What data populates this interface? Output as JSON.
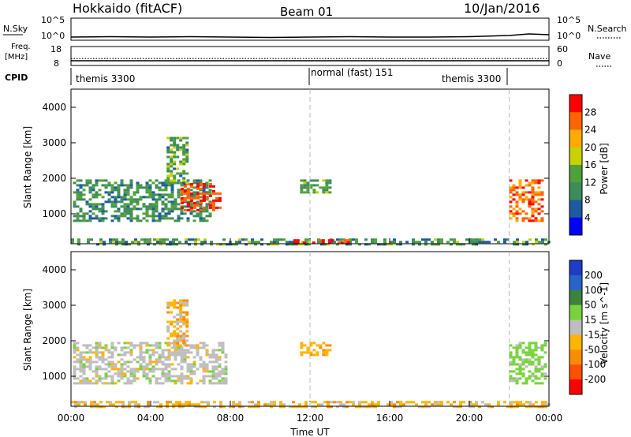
{
  "header": {
    "station": "Hokkaido (fitACF)",
    "beam": "Beam 01",
    "date": "10/Jan/2016"
  },
  "noise_panel": {
    "left_label": "N.Sky",
    "right_label": "N.Search",
    "left_ticks": [
      "10^5",
      "10^0"
    ],
    "right_ticks": [
      "10^5",
      "10^0"
    ]
  },
  "freq_panel": {
    "left_label_top": "Freq.",
    "left_label_bottom": "[MHz]",
    "left_ticks": [
      "18",
      "8"
    ],
    "right_ticks": [
      "60",
      "0"
    ],
    "right_label": "Nave"
  },
  "cpid": {
    "label": "CPID",
    "segments": [
      {
        "text": "themis 3300",
        "start_hour": 0
      },
      {
        "text": "normal (fast) 151",
        "start_hour": 12
      },
      {
        "text": "themis 3300",
        "start_hour": 22
      }
    ]
  },
  "time_axis": {
    "xlabel": "Time UT",
    "ticks": [
      "00:00",
      "04:00",
      "08:00",
      "12:00",
      "16:00",
      "20:00",
      "00:00"
    ]
  },
  "panels": {
    "power": {
      "ylabel": "Slant Range [km]",
      "yticks": [
        "1000",
        "2000",
        "3000",
        "4000"
      ],
      "colorbar_label": "Power [dB]",
      "colorbar_ticks": [
        "4",
        "8",
        "12",
        "16",
        "20",
        "24",
        "28"
      ]
    },
    "velocity": {
      "ylabel": "Slant Range [km]",
      "yticks": [
        "1000",
        "2000",
        "3000",
        "4000"
      ],
      "colorbar_label": "Velocity [m s^-1]",
      "colorbar_ticks": [
        "200",
        "100",
        "50",
        "15",
        "-15",
        "-50",
        "-100",
        "-200"
      ]
    }
  },
  "colors": {
    "power_scale": [
      "#0000ff",
      "#1e5aa0",
      "#3c8c5a",
      "#50a03c",
      "#c8d200",
      "#ffaa00",
      "#ff6400",
      "#ff0000"
    ],
    "velocity_scale": [
      "#1e3cc8",
      "#2864c8",
      "#3c823c",
      "#78d23c",
      "#bebebe",
      "#ffb400",
      "#ff8c00",
      "#ff5000",
      "#ff0000"
    ]
  },
  "chart_data": [
    {
      "type": "line",
      "name": "noise",
      "x_range": [
        0,
        24
      ],
      "series": [
        {
          "name": "N.Sky",
          "x": [
            0,
            2,
            4,
            6,
            8,
            10,
            12,
            14,
            16,
            18,
            20,
            22,
            23,
            24
          ],
          "values": [
            0.4,
            0.45,
            0.4,
            0.45,
            0.4,
            0.35,
            0.4,
            0.45,
            0.4,
            0.4,
            0.45,
            0.6,
            0.8,
            0.7
          ]
        }
      ]
    },
    {
      "type": "line",
      "name": "frequency",
      "x_range": [
        0,
        24
      ],
      "series": [
        {
          "name": "Freq.",
          "x": [
            0,
            24
          ],
          "values": [
            10.5,
            10.5
          ],
          "ylim": [
            8,
            18
          ]
        },
        {
          "name": "Nave",
          "x": [
            0,
            24
          ],
          "values": [
            22,
            22
          ],
          "ylim": [
            0,
            60
          ]
        }
      ]
    },
    {
      "type": "heatmap",
      "name": "power",
      "x_range": [
        0,
        24
      ],
      "ylim": [
        180,
        4550
      ],
      "zlim": [
        0,
        30
      ],
      "clusters": [
        {
          "x": [
            0.1,
            7.0
          ],
          "y": [
            800,
            2000
          ],
          "z": 10,
          "spread": 4
        },
        {
          "x": [
            5.5,
            7.5
          ],
          "y": [
            1100,
            1900
          ],
          "z": 26,
          "spread": 3
        },
        {
          "x": [
            4.8,
            5.8
          ],
          "y": [
            1900,
            3200
          ],
          "z": 12,
          "spread": 5
        },
        {
          "x": [
            22.0,
            23.7
          ],
          "y": [
            800,
            2000
          ],
          "z": 24,
          "spread": 5
        },
        {
          "x": [
            11.5,
            13.0
          ],
          "y": [
            1600,
            2000
          ],
          "z": 12,
          "spread": 4
        },
        {
          "x": [
            0.0,
            24.0
          ],
          "y": [
            190,
            330
          ],
          "z": 10,
          "spread": 6
        },
        {
          "x": [
            11.0,
            14.0
          ],
          "y": [
            190,
            310
          ],
          "z": 27,
          "spread": 2
        }
      ]
    },
    {
      "type": "heatmap",
      "name": "velocity",
      "x_range": [
        0,
        24
      ],
      "ylim": [
        180,
        4550
      ],
      "zlim": [
        -200,
        200
      ],
      "clusters": [
        {
          "x": [
            0.1,
            7.8
          ],
          "y": [
            800,
            2000
          ],
          "z": 0,
          "spread": 20
        },
        {
          "x": [
            22.0,
            23.8
          ],
          "y": [
            800,
            2000
          ],
          "z": 30,
          "spread": 20
        },
        {
          "x": [
            11.5,
            13.0
          ],
          "y": [
            1600,
            2000
          ],
          "z": -40,
          "spread": 15
        },
        {
          "x": [
            0.0,
            24.0
          ],
          "y": [
            190,
            330
          ],
          "z": -30,
          "spread": 30
        },
        {
          "x": [
            4.8,
            5.8
          ],
          "y": [
            1900,
            3200
          ],
          "z": -30,
          "spread": 40
        }
      ]
    }
  ]
}
